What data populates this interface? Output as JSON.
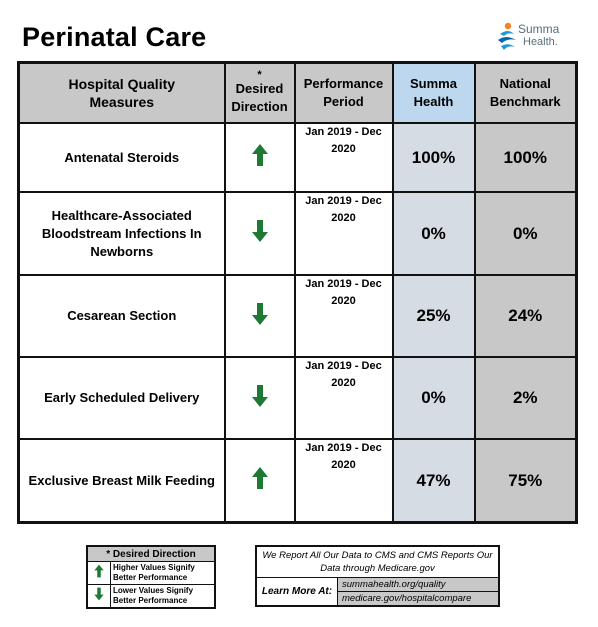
{
  "page": {
    "title": "Perinatal Care"
  },
  "logo": {
    "line1": "Summa",
    "line2": "Health."
  },
  "table": {
    "headers": {
      "measure": "Hospital Quality Measures",
      "direction_star": "*",
      "direction": "Desired Direction",
      "period": "Performance Period",
      "summa": "Summa Health",
      "national": "National Benchmark"
    },
    "rows": [
      {
        "measure": "Antenatal Steroids",
        "direction": "up",
        "period": "Jan 2019 - Dec 2020",
        "summa": "100%",
        "national": "100%"
      },
      {
        "measure": "Healthcare-Associated Bloodstream Infections In Newborns",
        "direction": "down",
        "period": "Jan 2019 - Dec 2020",
        "summa": "0%",
        "national": "0%"
      },
      {
        "measure": "Cesarean Section",
        "direction": "down",
        "period": "Jan 2019 - Dec 2020",
        "summa": "25%",
        "national": "24%"
      },
      {
        "measure": "Early Scheduled Delivery",
        "direction": "down",
        "period": "Jan 2019 - Dec 2020",
        "summa": "0%",
        "national": "2%"
      },
      {
        "measure": "Exclusive Breast Milk Feeding",
        "direction": "up",
        "period": "Jan 2019 - Dec 2020",
        "summa": "47%",
        "national": "75%"
      }
    ]
  },
  "legend": {
    "title": "* Desired Direction",
    "up_text": "Higher Values Signify Better Performance",
    "down_text": "Lower Values Signify Better Performance"
  },
  "info": {
    "message": "We Report All Our Data to CMS and CMS Reports Our Data through Medicare.gov",
    "learn_more": "Learn More At:",
    "link1": "summahealth.org/quality",
    "link2": "medicare.gov/hospitalcompare"
  },
  "colors": {
    "arrow_green": "#1e7a32",
    "header_gray": "#c8c8c8",
    "summa_header_blue": "#bdd7ee",
    "summa_cell": "#d6dce4"
  }
}
